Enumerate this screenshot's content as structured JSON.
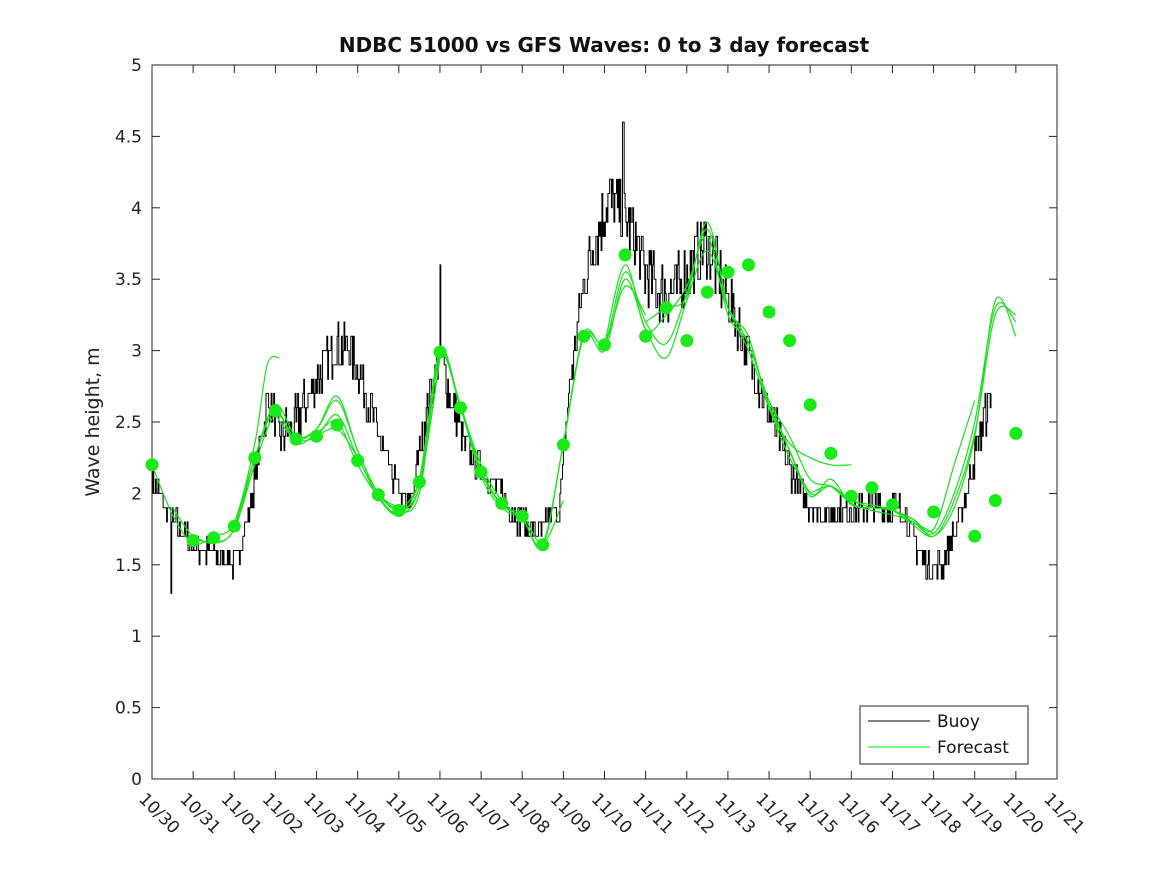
{
  "chart_data": {
    "type": "line",
    "title": "NDBC 51000 vs GFS Waves: 0 to 3 day forecast",
    "ylabel": "Wave height, m",
    "xlabel": "",
    "ylim": [
      0,
      5
    ],
    "yticks": [
      "0",
      "0.5",
      "1",
      "1.5",
      "2",
      "2.5",
      "3",
      "3.5",
      "4",
      "4.5",
      "5"
    ],
    "xticks": [
      "10/30",
      "10/31",
      "11/01",
      "11/02",
      "11/03",
      "11/04",
      "11/05",
      "11/06",
      "11/07",
      "11/08",
      "11/09",
      "11/10",
      "11/11",
      "11/12",
      "11/13",
      "11/14",
      "11/15",
      "11/16",
      "11/17",
      "11/18",
      "11/19",
      "11/20",
      "11/21"
    ],
    "grid": false,
    "legend": {
      "position": "bottom-right",
      "entries": [
        {
          "label": "Buoy",
          "color": "#000000"
        },
        {
          "label": "Forecast",
          "color": "#00e400"
        }
      ]
    },
    "colors": {
      "buoy": "#000000",
      "forecast": "#1be01b",
      "marker": "#1aea1a"
    },
    "buoy_anchors": [
      [
        0.0,
        2.1
      ],
      [
        0.3,
        1.9
      ],
      [
        0.8,
        1.7
      ],
      [
        1.2,
        1.6
      ],
      [
        1.8,
        1.55
      ],
      [
        2.0,
        1.5
      ],
      [
        2.3,
        1.8
      ],
      [
        2.5,
        2.1
      ],
      [
        2.7,
        2.5
      ],
      [
        2.85,
        2.65
      ],
      [
        3.1,
        2.4
      ],
      [
        3.5,
        2.5
      ],
      [
        4.0,
        2.8
      ],
      [
        4.5,
        3.05
      ],
      [
        4.8,
        3.0
      ],
      [
        5.1,
        2.8
      ],
      [
        5.5,
        2.4
      ],
      [
        5.8,
        2.15
      ],
      [
        6.1,
        1.95
      ],
      [
        6.25,
        1.9
      ],
      [
        6.5,
        2.3
      ],
      [
        6.8,
        2.75
      ],
      [
        7.0,
        3.0
      ],
      [
        7.3,
        2.6
      ],
      [
        7.6,
        2.35
      ],
      [
        8.0,
        2.15
      ],
      [
        8.4,
        2.05
      ],
      [
        8.7,
        1.9
      ],
      [
        9.0,
        1.8
      ],
      [
        9.2,
        1.75
      ],
      [
        9.4,
        1.7
      ],
      [
        9.6,
        1.8
      ],
      [
        9.9,
        1.9
      ],
      [
        10.1,
        2.6
      ],
      [
        10.3,
        3.1
      ],
      [
        10.5,
        3.5
      ],
      [
        10.8,
        3.8
      ],
      [
        11.1,
        4.05
      ],
      [
        11.4,
        4.0
      ],
      [
        11.7,
        3.8
      ],
      [
        12.0,
        3.55
      ],
      [
        12.4,
        3.4
      ],
      [
        12.8,
        3.45
      ],
      [
        13.1,
        3.6
      ],
      [
        13.5,
        3.75
      ],
      [
        13.8,
        3.5
      ],
      [
        14.1,
        3.3
      ],
      [
        14.4,
        3.05
      ],
      [
        14.7,
        2.8
      ],
      [
        15.0,
        2.55
      ],
      [
        15.3,
        2.35
      ],
      [
        15.6,
        2.1
      ],
      [
        16.0,
        1.9
      ],
      [
        16.4,
        1.85
      ],
      [
        16.8,
        1.9
      ],
      [
        17.2,
        1.9
      ],
      [
        17.6,
        1.9
      ],
      [
        18.0,
        1.9
      ],
      [
        18.3,
        1.85
      ],
      [
        18.6,
        1.6
      ],
      [
        18.9,
        1.45
      ],
      [
        19.2,
        1.5
      ],
      [
        19.5,
        1.7
      ],
      [
        19.8,
        2.0
      ],
      [
        20.1,
        2.4
      ],
      [
        20.3,
        2.6
      ],
      [
        20.4,
        2.7
      ]
    ],
    "buoy_spikes": [
      {
        "x": 7.0,
        "y": 3.6
      },
      {
        "x": 11.45,
        "y": 4.6
      },
      {
        "x": 0.45,
        "y": 1.3
      }
    ],
    "forecast_runs": [
      {
        "x": [
          0.0,
          0.5,
          1.0,
          1.5,
          2.0,
          2.5,
          2.8,
          3.1
        ],
        "y": [
          2.2,
          1.85,
          1.65,
          1.7,
          1.8,
          2.35,
          2.9,
          2.95
        ]
      },
      {
        "x": [
          0.5,
          1.0,
          1.5,
          2.0,
          2.5,
          3.0,
          3.5,
          4.0,
          4.5,
          5.0,
          5.5,
          6.0
        ],
        "y": [
          1.9,
          1.7,
          1.66,
          1.75,
          2.25,
          2.62,
          2.4,
          2.45,
          2.65,
          2.3,
          2.0,
          1.9
        ]
      },
      {
        "x": [
          1.0,
          1.5,
          2.0,
          2.5,
          3.0,
          3.5,
          4.0,
          4.5,
          5.0,
          5.5,
          6.0,
          6.5,
          7.0
        ],
        "y": [
          1.7,
          1.65,
          1.75,
          2.2,
          2.55,
          2.38,
          2.4,
          2.55,
          2.25,
          2.0,
          1.9,
          2.05,
          2.95
        ]
      },
      {
        "x": [
          2.0,
          2.5,
          3.0,
          3.5,
          4.0,
          4.5,
          5.0,
          5.5,
          6.0,
          6.5,
          7.0,
          7.5,
          8.0
        ],
        "y": [
          1.75,
          2.25,
          2.58,
          2.35,
          2.42,
          2.5,
          2.2,
          1.98,
          1.86,
          2.1,
          3.0,
          2.6,
          2.15
        ]
      },
      {
        "x": [
          3.0,
          3.5,
          4.0,
          4.5,
          5.0,
          5.5,
          6.0,
          6.5,
          7.0,
          7.5,
          8.0,
          8.5,
          9.0
        ],
        "y": [
          2.55,
          2.38,
          2.45,
          2.68,
          2.3,
          2.0,
          1.88,
          2.0,
          2.95,
          2.6,
          2.2,
          1.95,
          1.82
        ]
      },
      {
        "x": [
          4.0,
          4.5,
          5.0,
          5.5,
          6.0,
          6.5,
          7.0,
          7.5,
          8.0,
          8.5,
          9.0,
          9.5,
          10.0
        ],
        "y": [
          2.4,
          2.45,
          2.25,
          1.97,
          1.85,
          2.05,
          2.95,
          2.62,
          2.15,
          1.92,
          1.85,
          1.65,
          1.95
        ]
      },
      {
        "x": [
          6.0,
          6.5,
          7.0,
          7.5,
          8.0,
          8.5,
          9.0,
          9.5,
          10.0,
          10.5,
          11.0,
          11.5,
          12.0
        ],
        "y": [
          1.88,
          2.1,
          2.98,
          2.6,
          2.12,
          1.9,
          1.82,
          1.65,
          2.35,
          3.1,
          3.05,
          3.45,
          3.25
        ]
      },
      {
        "x": [
          8.0,
          8.5,
          9.0,
          9.5,
          10.0,
          10.5,
          11.0,
          11.5,
          12.0,
          12.5,
          13.0,
          13.5,
          14.0
        ],
        "y": [
          2.15,
          1.92,
          1.83,
          1.63,
          2.35,
          3.12,
          3.05,
          3.55,
          3.2,
          3.05,
          3.4,
          3.85,
          3.3
        ]
      },
      {
        "x": [
          10.0,
          10.5,
          11.0,
          11.5,
          12.0,
          12.5,
          13.0,
          13.5,
          14.0,
          14.5,
          15.0,
          15.5,
          16.0
        ],
        "y": [
          2.35,
          3.1,
          3.0,
          3.5,
          3.15,
          2.95,
          3.35,
          3.7,
          3.3,
          3.0,
          2.6,
          2.25,
          2.0
        ]
      },
      {
        "x": [
          11.0,
          11.5,
          12.0,
          12.5,
          13.0,
          13.5,
          14.0,
          14.5,
          15.0,
          15.5,
          16.0,
          16.5,
          17.0
        ],
        "y": [
          3.04,
          3.6,
          3.15,
          3.25,
          3.45,
          3.8,
          3.25,
          3.05,
          2.62,
          2.3,
          2.0,
          2.05,
          1.92
        ]
      },
      {
        "x": [
          12.0,
          12.5,
          13.0,
          13.5,
          14.0,
          14.5,
          15.0,
          15.5,
          16.0,
          16.5,
          17.0
        ],
        "y": [
          3.2,
          3.3,
          3.38,
          3.9,
          3.3,
          3.1,
          2.6,
          2.35,
          2.25,
          2.2,
          2.2
        ]
      },
      {
        "x": [
          14.0,
          14.5,
          15.0,
          15.5,
          16.0,
          16.5,
          17.0,
          17.5,
          18.0,
          18.5,
          19.0
        ],
        "y": [
          3.3,
          3.05,
          2.65,
          2.4,
          2.1,
          2.05,
          1.93,
          1.88,
          1.85,
          1.8,
          1.72
        ]
      },
      {
        "x": [
          15.0,
          15.5,
          16.0,
          16.5,
          17.0,
          17.5,
          18.0,
          18.5,
          19.0,
          19.5,
          20.0
        ],
        "y": [
          2.65,
          2.3,
          1.98,
          2.1,
          1.92,
          1.9,
          1.88,
          1.82,
          1.75,
          2.2,
          2.65
        ]
      },
      {
        "x": [
          16.0,
          16.5,
          17.0,
          17.5,
          18.0,
          18.5,
          19.0,
          19.5,
          20.0,
          20.5,
          21.0
        ],
        "y": [
          2.0,
          2.05,
          1.95,
          1.92,
          1.88,
          1.8,
          1.72,
          2.0,
          2.5,
          3.3,
          3.2
        ]
      },
      {
        "x": [
          17.0,
          17.5,
          18.0,
          18.5,
          19.0,
          19.5,
          20.0,
          20.5,
          21.0
        ],
        "y": [
          1.95,
          1.9,
          1.88,
          1.78,
          1.7,
          1.9,
          2.4,
          3.35,
          3.1
        ]
      },
      {
        "x": [
          18.0,
          18.5,
          19.0,
          19.5,
          20.0,
          20.5,
          21.0
        ],
        "y": [
          1.88,
          1.82,
          1.7,
          1.95,
          2.42,
          3.25,
          3.25
        ]
      }
    ],
    "forecast_markers": [
      [
        0.0,
        2.2
      ],
      [
        1.0,
        1.67
      ],
      [
        1.5,
        1.69
      ],
      [
        2.0,
        1.77
      ],
      [
        2.5,
        2.25
      ],
      [
        3.0,
        2.58
      ],
      [
        3.5,
        2.38
      ],
      [
        4.0,
        2.4
      ],
      [
        4.5,
        2.48
      ],
      [
        5.0,
        2.23
      ],
      [
        5.5,
        1.99
      ],
      [
        6.0,
        1.88
      ],
      [
        6.5,
        2.08
      ],
      [
        7.0,
        2.99
      ],
      [
        7.5,
        2.6
      ],
      [
        8.0,
        2.15
      ],
      [
        8.5,
        1.93
      ],
      [
        9.0,
        1.84
      ],
      [
        9.5,
        1.64
      ],
      [
        10.0,
        2.34
      ],
      [
        10.5,
        3.1
      ],
      [
        11.0,
        3.04
      ],
      [
        11.5,
        3.67
      ],
      [
        12.0,
        3.1
      ],
      [
        12.5,
        3.3
      ],
      [
        13.0,
        3.07
      ],
      [
        13.5,
        3.41
      ],
      [
        14.0,
        3.55
      ],
      [
        14.5,
        3.6
      ],
      [
        15.0,
        3.27
      ],
      [
        15.5,
        3.07
      ],
      [
        16.0,
        2.62
      ],
      [
        16.5,
        2.28
      ],
      [
        17.0,
        1.98
      ],
      [
        17.5,
        2.04
      ],
      [
        18.0,
        1.92
      ],
      [
        19.0,
        1.87
      ],
      [
        20.0,
        1.7
      ],
      [
        20.5,
        1.95
      ],
      [
        21.0,
        2.42
      ]
    ]
  }
}
